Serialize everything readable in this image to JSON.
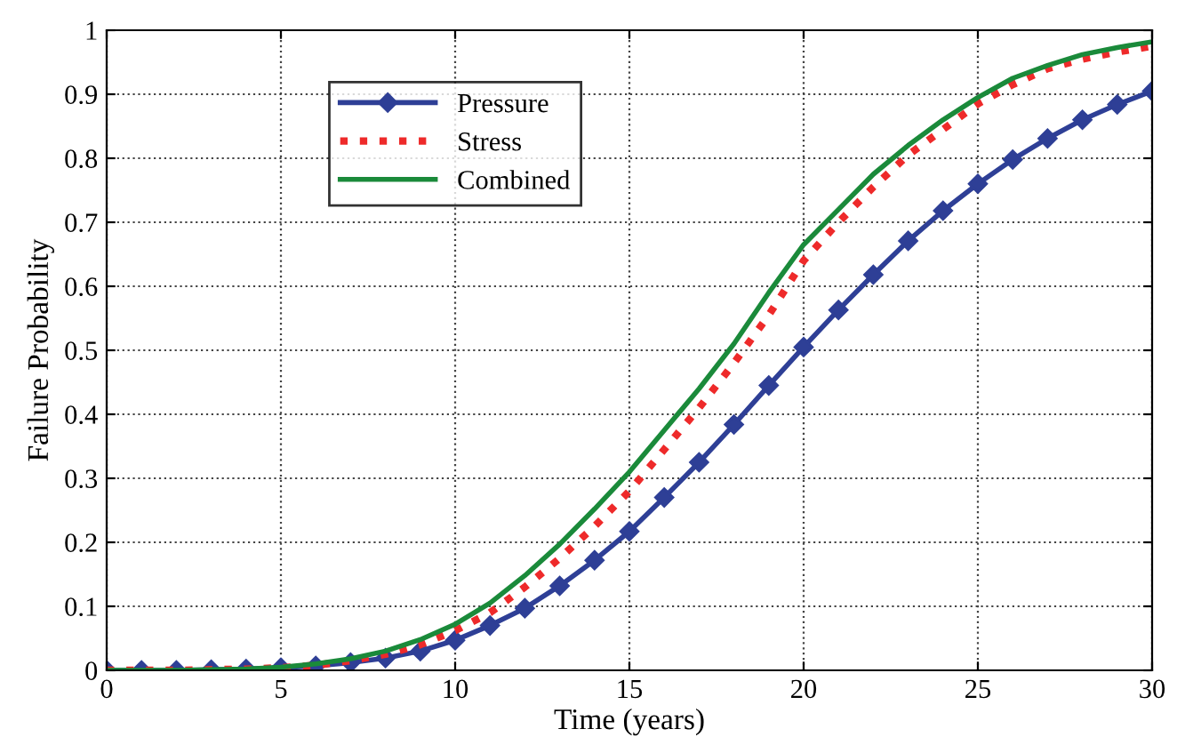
{
  "chart_data": {
    "type": "line",
    "xlabel": "Time (years)",
    "ylabel": "Failure Probability",
    "x": [
      0,
      1,
      2,
      3,
      4,
      5,
      6,
      7,
      8,
      9,
      10,
      11,
      12,
      13,
      14,
      15,
      16,
      17,
      18,
      19,
      20,
      21,
      22,
      23,
      24,
      25,
      26,
      27,
      28,
      29,
      30
    ],
    "series": [
      {
        "name": "Pressure",
        "color": "#2e3f96",
        "marker": "diamond",
        "line_style": "solid",
        "values": [
          0,
          0,
          0,
          0.001,
          0.002,
          0.004,
          0.007,
          0.012,
          0.019,
          0.03,
          0.047,
          0.07,
          0.097,
          0.132,
          0.172,
          0.217,
          0.27,
          0.325,
          0.384,
          0.445,
          0.505,
          0.563,
          0.618,
          0.671,
          0.718,
          0.76,
          0.798,
          0.831,
          0.86,
          0.884,
          0.905
        ]
      },
      {
        "name": "Stress",
        "color": "#ee2a2a",
        "marker": "none",
        "line_style": "dotted",
        "values": [
          0,
          0,
          0,
          0.001,
          0.002,
          0.004,
          0.008,
          0.015,
          0.025,
          0.04,
          0.062,
          0.09,
          0.13,
          0.175,
          0.225,
          0.28,
          0.345,
          0.41,
          0.48,
          0.555,
          0.64,
          0.7,
          0.755,
          0.805,
          0.845,
          0.885,
          0.915,
          0.94,
          0.955,
          0.966,
          0.975
        ]
      },
      {
        "name": "Combined",
        "color": "#1a8a3a",
        "marker": "none",
        "line_style": "solid",
        "values": [
          0,
          0,
          0,
          0.001,
          0.002,
          0.005,
          0.01,
          0.018,
          0.03,
          0.048,
          0.072,
          0.105,
          0.148,
          0.197,
          0.252,
          0.31,
          0.375,
          0.44,
          0.51,
          0.59,
          0.665,
          0.72,
          0.775,
          0.82,
          0.86,
          0.895,
          0.925,
          0.945,
          0.962,
          0.973,
          0.982
        ]
      }
    ],
    "xlim": [
      0,
      30
    ],
    "xticks": [
      0,
      5,
      10,
      15,
      20,
      25,
      30
    ],
    "ylim": [
      0,
      1
    ],
    "yticks": [
      0,
      0.1,
      0.2,
      0.3,
      0.4,
      0.5,
      0.6,
      0.7,
      0.8,
      0.9,
      1
    ],
    "grid": true,
    "legend": "top left"
  }
}
